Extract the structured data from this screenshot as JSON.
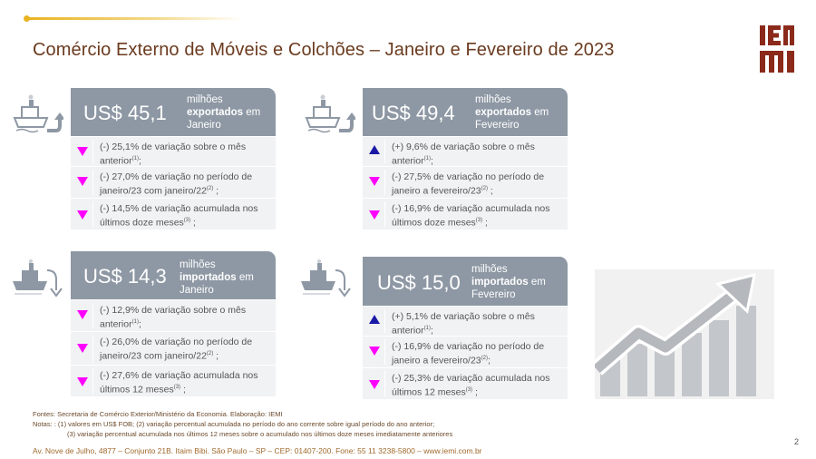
{
  "title": "Comércio Externo de Móveis e Colchões – Janeiro e Fevereiro de 2023",
  "logo_text": "IEMI",
  "colors": {
    "header_gray": "#8e98a4",
    "title_brown": "#6b3b1f",
    "down": "#ff00ff",
    "up": "#1a1aa6",
    "gold": "#e8b322"
  },
  "cards": [
    {
      "amount": "US$ 45,1",
      "line1": "milhões",
      "line2_bold": "exportados",
      "line2_rest": " em",
      "line3": "Janeiro",
      "rows": [
        {
          "dir": "down",
          "text": "(-) 25,1% de variação sobre o mês anterior",
          "note": "(1)",
          "tail": ";"
        },
        {
          "dir": "down",
          "text": "(-) 27,0% de variação no período de janeiro/23 com janeiro/22",
          "note": "(2)",
          "tail": " ;"
        },
        {
          "dir": "down",
          "text": "(-) 14,5% de variação acumulada nos últimos doze meses",
          "note": "(3)",
          "tail": " ;"
        }
      ]
    },
    {
      "amount": "US$ 49,4",
      "line1": "milhões",
      "line2_bold": "exportados",
      "line2_rest": " em",
      "line3": "Fevereiro",
      "rows": [
        {
          "dir": "up",
          "text": "(+) 9,6% de variação sobre o mês anterior",
          "note": "(1)",
          "tail": ";"
        },
        {
          "dir": "down",
          "text": "(-) 27,5% de variação no período de janeiro a fevereiro/23",
          "note": "(2)",
          "tail": " ;"
        },
        {
          "dir": "down",
          "text": "(-) 16,9% de variação acumulada nos últimos doze meses",
          "note": "(3)",
          "tail": " ;"
        }
      ]
    },
    {
      "amount": "US$ 14,3",
      "line1": "milhões",
      "line2_bold": "importados",
      "line2_rest": " em",
      "line3": "Janeiro",
      "rows": [
        {
          "dir": "down",
          "text": "(-) 12,9%  de variação sobre o mês anterior",
          "note": "(1)",
          "tail": ";"
        },
        {
          "dir": "down",
          "text": "(-) 26,0% de variação no período de janeiro/23 com janeiro/22",
          "note": "(2)",
          "tail": " ;"
        },
        {
          "dir": "down",
          "text": "(-) 27,6% de variação acumulada nos últimos 12 meses",
          "note": "(3)",
          "tail": " ;"
        }
      ]
    },
    {
      "amount": "US$ 15,0",
      "line1": "milhões",
      "line2_bold": "importados",
      "line2_rest": " em",
      "line3": "Fevereiro",
      "rows": [
        {
          "dir": "up",
          "text": "(+) 5,1% de variação sobre o mês anterior",
          "note": "(1)",
          "tail": ";"
        },
        {
          "dir": "down",
          "text": "(-) 16,9% de variação no período de janeiro a fevereiro/23",
          "note": "(2)",
          "tail": ";"
        },
        {
          "dir": "down",
          "text": "(-) 25,3% de variação acumulada nos últimos 12 meses",
          "note": "(3)",
          "tail": " ;"
        }
      ]
    }
  ],
  "footer": {
    "sources": "Fontes: Secretaria de Comércio Exterior/Ministério da Economia. Elaboração: IEMI",
    "notes1": "Notas: : (1) valores em US$ FOB; (2) variação percentual acumulada no período do ano corrente sobre igual período do ano anterior;",
    "notes2": "(3) variação percentual acumulada nos últimos 12 meses sobre o acumulado nos últimos doze meses imediatamente anteriores",
    "address": "Av. Nove de Julho, 4877 – Conjunto 21B. Itaim Bibi. São Paulo – SP – CEP: 01407-200. Fone: 55 11 3238-5800 – www.iemi.com.br",
    "page": "2"
  },
  "icons": {
    "export_ship": "ship-export-icon",
    "import_ship": "ship-import-icon",
    "growth": "growth-chart-icon"
  }
}
